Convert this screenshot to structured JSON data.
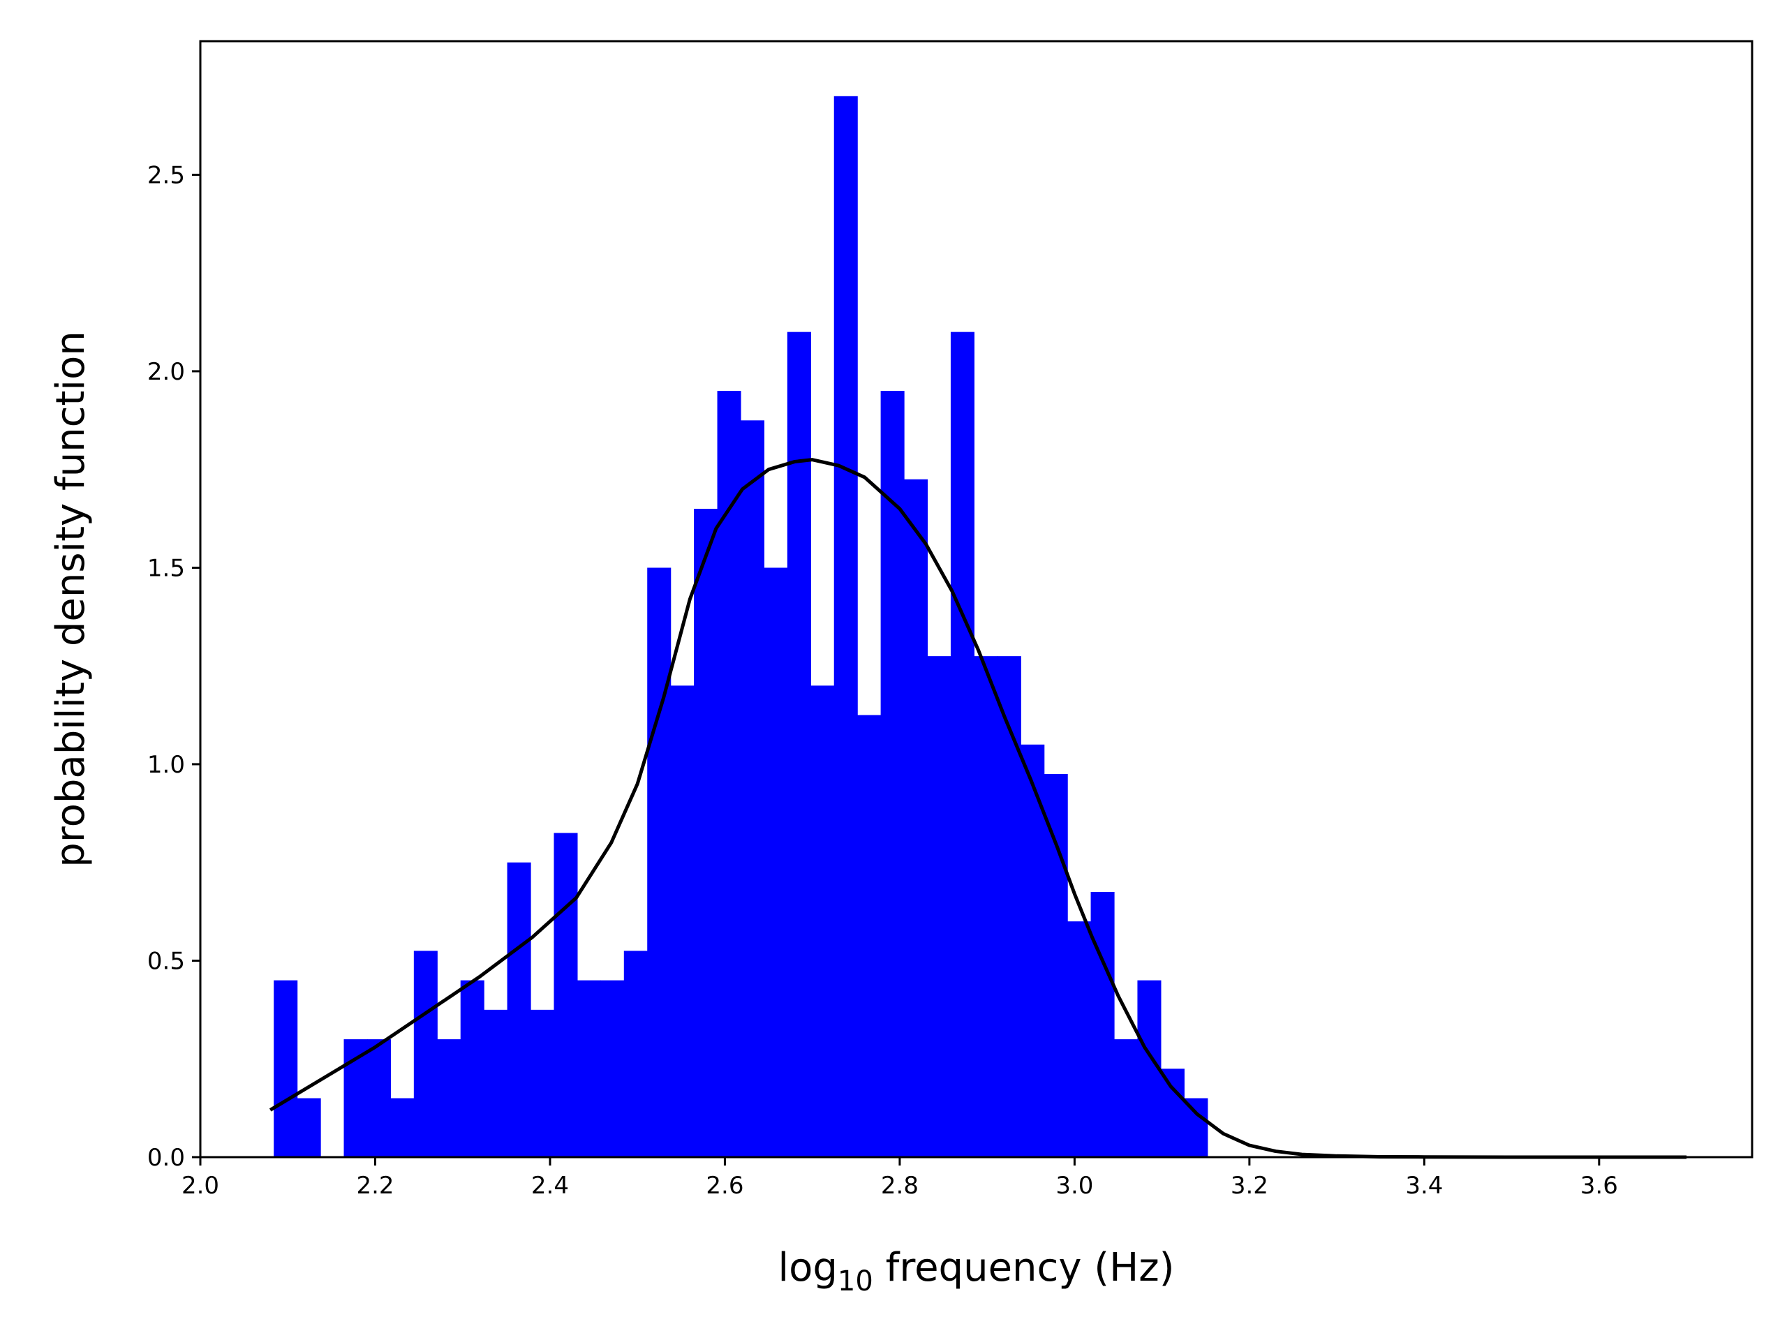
{
  "chart_data": {
    "type": "bar",
    "title": "",
    "xlabel": "log",
    "xlabel_subscript": "10",
    "xlabel_suffix": " frequency (Hz)",
    "ylabel": "probability density function",
    "xlim": [
      2.0,
      3.775
    ],
    "ylim": [
      0.0,
      2.84
    ],
    "grid": false,
    "legend": "none",
    "colors": {
      "bars": "#0000ff",
      "curve": "#000000",
      "axes": "#000000"
    },
    "x_ticks": [
      {
        "value": 2.0,
        "label": "2.0"
      },
      {
        "value": 2.2,
        "label": "2.2"
      },
      {
        "value": 2.4,
        "label": "2.4"
      },
      {
        "value": 2.6,
        "label": "2.6"
      },
      {
        "value": 2.8,
        "label": "2.8"
      },
      {
        "value": 3.0,
        "label": "3.0"
      },
      {
        "value": 3.2,
        "label": "3.2"
      },
      {
        "value": 3.4,
        "label": "3.4"
      },
      {
        "value": 3.6,
        "label": "3.6"
      }
    ],
    "y_ticks": [
      {
        "value": 0.0,
        "label": "0.0"
      },
      {
        "value": 0.5,
        "label": "0.5"
      },
      {
        "value": 1.0,
        "label": "1.0"
      },
      {
        "value": 1.5,
        "label": "1.5"
      },
      {
        "value": 2.0,
        "label": "2.0"
      },
      {
        "value": 2.5,
        "label": "2.5"
      }
    ],
    "histogram": {
      "start": 2.084,
      "bin_width": 0.0267,
      "values": [
        0.45,
        0.15,
        0.0,
        0.3,
        0.3,
        0.15,
        0.525,
        0.3,
        0.45,
        0.375,
        0.75,
        0.375,
        0.825,
        0.45,
        0.45,
        0.525,
        1.5,
        1.2,
        1.65,
        1.95,
        1.875,
        1.5,
        2.1,
        1.2,
        2.7,
        1.125,
        1.95,
        1.725,
        1.275,
        2.1,
        1.275,
        1.275,
        1.05,
        0.975,
        0.6,
        0.675,
        0.3,
        0.45,
        0.225,
        0.15
      ]
    },
    "density_curve": {
      "x": [
        2.08,
        2.14,
        2.2,
        2.26,
        2.32,
        2.38,
        2.43,
        2.47,
        2.5,
        2.53,
        2.56,
        2.59,
        2.62,
        2.65,
        2.68,
        2.7,
        2.73,
        2.76,
        2.8,
        2.83,
        2.86,
        2.89,
        2.92,
        2.95,
        2.98,
        3.0,
        3.02,
        3.05,
        3.08,
        3.11,
        3.14,
        3.17,
        3.2,
        3.23,
        3.26,
        3.3,
        3.35,
        3.4,
        3.5,
        3.6,
        3.7
      ],
      "y": [
        0.12,
        0.2,
        0.28,
        0.37,
        0.46,
        0.56,
        0.66,
        0.8,
        0.95,
        1.17,
        1.42,
        1.6,
        1.7,
        1.75,
        1.77,
        1.775,
        1.76,
        1.73,
        1.65,
        1.56,
        1.44,
        1.29,
        1.12,
        0.96,
        0.79,
        0.67,
        0.56,
        0.41,
        0.28,
        0.18,
        0.11,
        0.06,
        0.03,
        0.015,
        0.007,
        0.003,
        0.001,
        0.0005,
        0.0,
        0.0,
        0.0
      ]
    }
  }
}
